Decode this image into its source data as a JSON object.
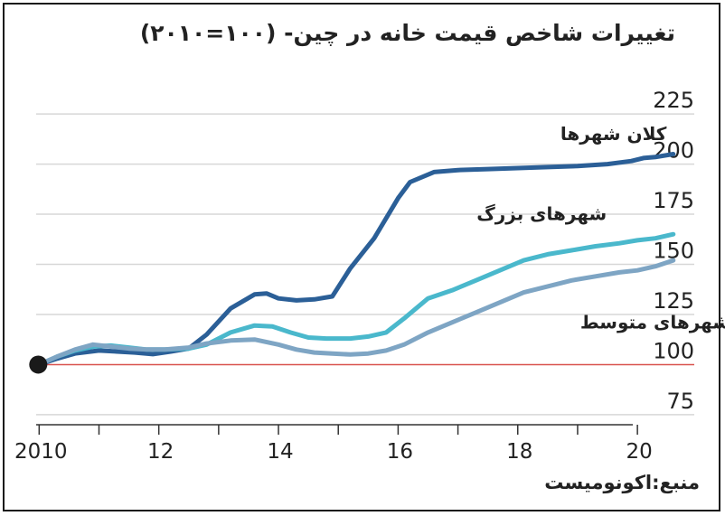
{
  "title": "تغییرات شاخص قیمت خانه در چین- (۱۰۰=۲۰۱۰)",
  "source": "منبع:اکونومیست",
  "colors": {
    "big_cities": "#2b5f97",
    "large_cities": "#4ab8cc",
    "medium_cities": "#7ea5c4",
    "baseline": "#d9534f",
    "grid": "#d7d7d7"
  },
  "chart_data": {
    "type": "line",
    "title": "تغییرات شاخص قیمت خانه در چین- (۱۰۰=۲۰۱۰)",
    "xlabel": "",
    "ylabel": "",
    "xlim": [
      2009.95,
      2020.95
    ],
    "ylim": [
      70,
      230
    ],
    "yticks": [
      75,
      100,
      125,
      150,
      175,
      200,
      225
    ],
    "xticks": [
      2010,
      2011,
      2012,
      2013,
      2014,
      2015,
      2016,
      2017,
      2018,
      2019,
      2020
    ],
    "xtick_labels": [
      {
        "x": 2010,
        "label": "2010"
      },
      {
        "x": 2012,
        "label": "12"
      },
      {
        "x": 2014,
        "label": "14"
      },
      {
        "x": 2016,
        "label": "16"
      },
      {
        "x": 2018,
        "label": "18"
      },
      {
        "x": 2020,
        "label": "20"
      }
    ],
    "baseline": 100,
    "start_point": {
      "x": 2010,
      "y": 100
    },
    "series": [
      {
        "name": "کلان شهرها",
        "color": "#2b5f97",
        "points": [
          [
            2010,
            100
          ],
          [
            2010.3,
            103
          ],
          [
            2010.6,
            105.5
          ],
          [
            2011,
            107
          ],
          [
            2011.3,
            106.5
          ],
          [
            2011.6,
            106
          ],
          [
            2011.9,
            105.2
          ],
          [
            2012.2,
            106.5
          ],
          [
            2012.5,
            108
          ],
          [
            2012.8,
            115
          ],
          [
            2013.2,
            128
          ],
          [
            2013.6,
            135
          ],
          [
            2013.8,
            135.5
          ],
          [
            2014,
            133
          ],
          [
            2014.3,
            132
          ],
          [
            2014.6,
            132.5
          ],
          [
            2014.9,
            134
          ],
          [
            2015.2,
            148
          ],
          [
            2015.6,
            163
          ],
          [
            2016,
            183
          ],
          [
            2016.2,
            191
          ],
          [
            2016.6,
            196
          ],
          [
            2017,
            197
          ],
          [
            2017.5,
            197.5
          ],
          [
            2018,
            198
          ],
          [
            2018.5,
            198.5
          ],
          [
            2019,
            199
          ],
          [
            2019.5,
            200
          ],
          [
            2019.9,
            201.5
          ],
          [
            2020.1,
            203
          ],
          [
            2020.3,
            203.5
          ],
          [
            2020.6,
            205
          ]
        ]
      },
      {
        "name": "شهرهای بزرگ",
        "color": "#4ab8cc",
        "points": [
          [
            2010,
            100
          ],
          [
            2010.3,
            104
          ],
          [
            2010.6,
            107
          ],
          [
            2010.9,
            109
          ],
          [
            2011.2,
            109.5
          ],
          [
            2011.5,
            108.5
          ],
          [
            2011.8,
            107.5
          ],
          [
            2012.1,
            107.5
          ],
          [
            2012.5,
            108
          ],
          [
            2012.8,
            110
          ],
          [
            2013.2,
            116
          ],
          [
            2013.6,
            119.5
          ],
          [
            2013.9,
            119
          ],
          [
            2014.2,
            116
          ],
          [
            2014.5,
            113.5
          ],
          [
            2014.8,
            113
          ],
          [
            2015.2,
            113
          ],
          [
            2015.5,
            114
          ],
          [
            2015.8,
            116
          ],
          [
            2016.1,
            123
          ],
          [
            2016.5,
            133
          ],
          [
            2016.9,
            137
          ],
          [
            2017.3,
            142
          ],
          [
            2017.7,
            147
          ],
          [
            2018.1,
            152
          ],
          [
            2018.5,
            155
          ],
          [
            2018.9,
            157
          ],
          [
            2019.3,
            159
          ],
          [
            2019.7,
            160.5
          ],
          [
            2020,
            162
          ],
          [
            2020.3,
            163
          ],
          [
            2020.6,
            165
          ]
        ]
      },
      {
        "name": "شهرهای متوسط",
        "color": "#7ea5c4",
        "points": [
          [
            2010,
            100
          ],
          [
            2010.3,
            104
          ],
          [
            2010.6,
            107.5
          ],
          [
            2010.9,
            110
          ],
          [
            2011.2,
            109
          ],
          [
            2011.5,
            108
          ],
          [
            2011.8,
            107.5
          ],
          [
            2012.1,
            107.5
          ],
          [
            2012.5,
            108.5
          ],
          [
            2012.8,
            110.5
          ],
          [
            2013.2,
            112
          ],
          [
            2013.6,
            112.5
          ],
          [
            2014,
            110
          ],
          [
            2014.3,
            107.5
          ],
          [
            2014.6,
            106
          ],
          [
            2014.9,
            105.5
          ],
          [
            2015.2,
            105
          ],
          [
            2015.5,
            105.5
          ],
          [
            2015.8,
            107
          ],
          [
            2016.1,
            110
          ],
          [
            2016.5,
            116
          ],
          [
            2016.9,
            121
          ],
          [
            2017.3,
            126
          ],
          [
            2017.7,
            131
          ],
          [
            2018.1,
            136
          ],
          [
            2018.5,
            139
          ],
          [
            2018.9,
            142
          ],
          [
            2019.3,
            144
          ],
          [
            2019.7,
            146
          ],
          [
            2020,
            147
          ],
          [
            2020.3,
            149
          ],
          [
            2020.6,
            152
          ]
        ]
      }
    ],
    "series_labels": [
      {
        "series": 0,
        "x": 2019.6,
        "y": 212
      },
      {
        "series": 1,
        "x": 2018.4,
        "y": 172
      },
      {
        "series": 2,
        "x": 2020.3,
        "y": 118
      }
    ]
  }
}
